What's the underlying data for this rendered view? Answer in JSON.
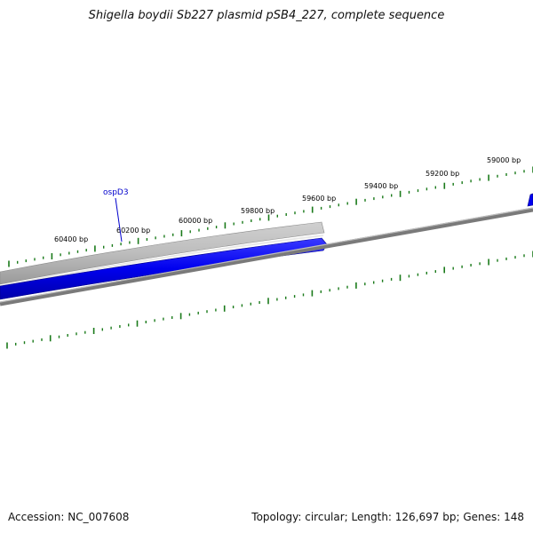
{
  "title": "Shigella boydii Sb227 plasmid pSB4_227, complete sequence",
  "accession": "Accession: NC_007608",
  "footer_info": "Topology: circular; Length: 126,697 bp; Genes: 148",
  "colors": {
    "gene_blue": "#0000ee",
    "gene_gray": "#b0b0b0",
    "backbone": "#808080",
    "tick_green": "#1a7a1a"
  },
  "scale_labels": [
    "60400 bp",
    "60200 bp",
    "60000 bp",
    "59800 bp",
    "59600 bp",
    "59400 bp",
    "59200 bp",
    "59000 bp"
  ],
  "gene_labels": [
    "ospD3"
  ]
}
